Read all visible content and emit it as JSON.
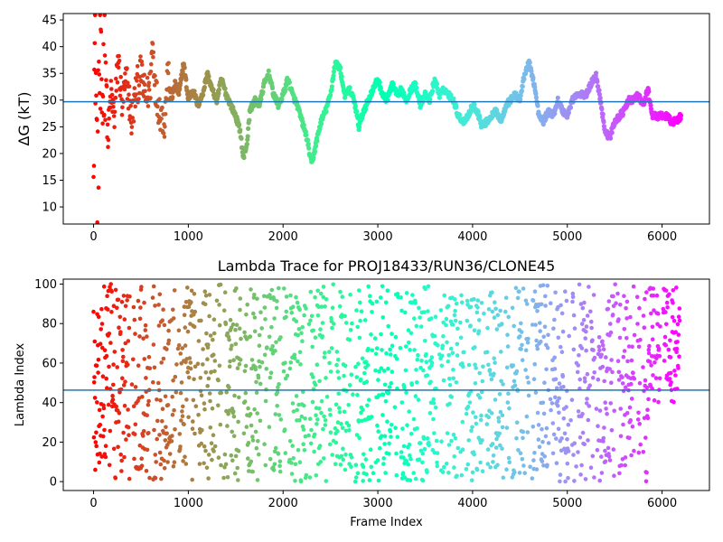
{
  "chart_data": [
    {
      "type": "scatter",
      "title": "",
      "xlabel": "",
      "ylabel": "ΔG (kT)",
      "xlim": [
        -320,
        6500
      ],
      "ylim": [
        6.8,
        46.2
      ],
      "xticks": [
        0,
        1000,
        2000,
        3000,
        4000,
        5000,
        6000
      ],
      "yticks": [
        10,
        15,
        20,
        25,
        30,
        35,
        40,
        45
      ],
      "hline": 29.7,
      "hline_color": "#1f77b4",
      "colormap": "rainbow",
      "grid": false,
      "n_points": 6200,
      "trace": [
        [
          0,
          30
        ],
        [
          20,
          41
        ],
        [
          40,
          12
        ],
        [
          60,
          36
        ],
        [
          80,
          28
        ],
        [
          100,
          33
        ],
        [
          120,
          44
        ],
        [
          150,
          22
        ],
        [
          180,
          31
        ],
        [
          220,
          27
        ],
        [
          260,
          38
        ],
        [
          300,
          29
        ],
        [
          350,
          34
        ],
        [
          400,
          26
        ],
        [
          450,
          32
        ],
        [
          500,
          35
        ],
        [
          550,
          30
        ],
        [
          600,
          33
        ],
        [
          620,
          41
        ],
        [
          660,
          31
        ],
        [
          700,
          28
        ],
        [
          750,
          26
        ],
        [
          780,
          35
        ],
        [
          820,
          30
        ],
        [
          860,
          33
        ],
        [
          900,
          31
        ],
        [
          950,
          37
        ],
        [
          1000,
          30
        ],
        [
          1050,
          32
        ],
        [
          1100,
          29
        ],
        [
          1150,
          31
        ],
        [
          1200,
          35
        ],
        [
          1250,
          32
        ],
        [
          1300,
          30
        ],
        [
          1350,
          34
        ],
        [
          1400,
          31
        ],
        [
          1450,
          29
        ],
        [
          1500,
          27
        ],
        [
          1550,
          24
        ],
        [
          1580,
          19
        ],
        [
          1620,
          22
        ],
        [
          1650,
          28
        ],
        [
          1700,
          30
        ],
        [
          1750,
          29
        ],
        [
          1800,
          33
        ],
        [
          1850,
          35
        ],
        [
          1900,
          31
        ],
        [
          1950,
          29
        ],
        [
          2000,
          31
        ],
        [
          2050,
          34
        ],
        [
          2100,
          31
        ],
        [
          2150,
          29
        ],
        [
          2200,
          26
        ],
        [
          2250,
          23
        ],
        [
          2300,
          18
        ],
        [
          2350,
          22
        ],
        [
          2400,
          26
        ],
        [
          2450,
          28
        ],
        [
          2500,
          31
        ],
        [
          2550,
          37
        ],
        [
          2600,
          36
        ],
        [
          2650,
          31
        ],
        [
          2700,
          32
        ],
        [
          2750,
          30
        ],
        [
          2800,
          25
        ],
        [
          2850,
          28
        ],
        [
          2900,
          30
        ],
        [
          2950,
          32
        ],
        [
          3000,
          34
        ],
        [
          3050,
          31
        ],
        [
          3100,
          30
        ],
        [
          3150,
          33
        ],
        [
          3200,
          31
        ],
        [
          3250,
          32
        ],
        [
          3300,
          30
        ],
        [
          3350,
          32
        ],
        [
          3400,
          33
        ],
        [
          3450,
          29
        ],
        [
          3500,
          31
        ],
        [
          3550,
          30
        ],
        [
          3600,
          34
        ],
        [
          3650,
          31
        ],
        [
          3700,
          32
        ],
        [
          3750,
          31
        ],
        [
          3800,
          30
        ],
        [
          3850,
          27
        ],
        [
          3900,
          26
        ],
        [
          3950,
          27
        ],
        [
          4000,
          29
        ],
        [
          4050,
          28
        ],
        [
          4100,
          25
        ],
        [
          4150,
          26
        ],
        [
          4200,
          27
        ],
        [
          4250,
          28
        ],
        [
          4300,
          26
        ],
        [
          4350,
          29
        ],
        [
          4400,
          30
        ],
        [
          4450,
          31
        ],
        [
          4500,
          30
        ],
        [
          4550,
          35
        ],
        [
          4600,
          37
        ],
        [
          4650,
          33
        ],
        [
          4700,
          27
        ],
        [
          4750,
          26
        ],
        [
          4800,
          28
        ],
        [
          4850,
          27
        ],
        [
          4900,
          30
        ],
        [
          4950,
          28
        ],
        [
          5000,
          27
        ],
        [
          5050,
          30
        ],
        [
          5100,
          31
        ],
        [
          5150,
          31
        ],
        [
          5200,
          31
        ],
        [
          5250,
          33
        ],
        [
          5300,
          35
        ],
        [
          5350,
          30
        ],
        [
          5400,
          24
        ],
        [
          5450,
          23
        ],
        [
          5500,
          26
        ],
        [
          5550,
          27
        ],
        [
          5600,
          28
        ],
        [
          5650,
          30
        ],
        [
          5700,
          30
        ],
        [
          5750,
          31
        ],
        [
          5800,
          29
        ],
        [
          5850,
          32
        ],
        [
          5900,
          27
        ],
        [
          5950,
          27
        ],
        [
          6000,
          27
        ],
        [
          6050,
          27
        ],
        [
          6100,
          26
        ],
        [
          6150,
          26
        ],
        [
          6200,
          27
        ]
      ]
    },
    {
      "type": "scatter",
      "title": "Lambda Trace for PROJ18433/RUN36/CLONE45",
      "xlabel": "Frame Index",
      "ylabel": "Lambda Index",
      "xlim": [
        -320,
        6500
      ],
      "ylim": [
        -4.5,
        102.5
      ],
      "xticks": [
        0,
        1000,
        2000,
        3000,
        4000,
        5000,
        6000
      ],
      "yticks": [
        0,
        20,
        40,
        60,
        80,
        100
      ],
      "hline": 46.3,
      "hline_color": "#1f77b4",
      "colormap": "rainbow",
      "grid": false,
      "n_points": 6200
    }
  ]
}
